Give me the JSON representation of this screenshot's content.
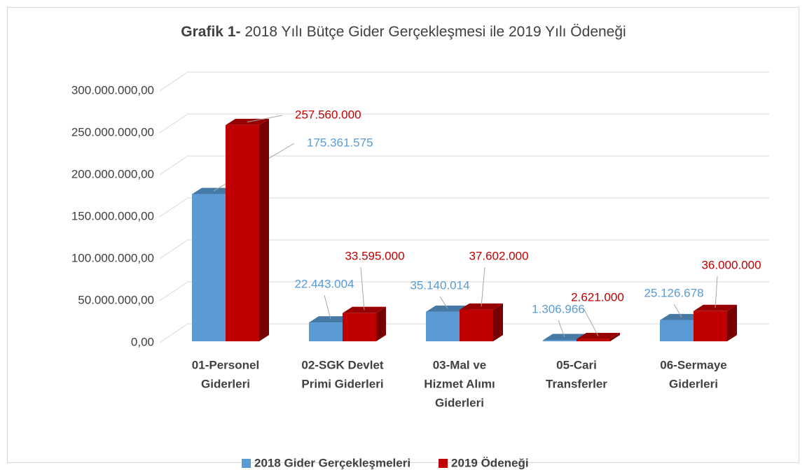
{
  "chart_data": {
    "type": "bar3d",
    "title_bold": "Grafik 1-",
    "title": "2018 Yılı Bütçe Gider Gerçekleşmesi ile 2019 Yılı Ödeneği",
    "categories": [
      [
        "01-Personel",
        "Giderleri"
      ],
      [
        "02-SGK Devlet",
        "Primi Giderleri"
      ],
      [
        "03-Mal ve",
        "Hizmet Alımı",
        "Giderleri"
      ],
      [
        "05-Cari",
        "Transferler"
      ],
      [
        "06-Sermaye",
        "Giderleri"
      ]
    ],
    "series": [
      {
        "name": "2018 Gider Gerçekleşmeleri",
        "color": "#5b9bd5",
        "values": [
          175361575,
          22443004,
          35140014,
          1306966,
          25126678
        ],
        "value_labels": [
          "175.361.575",
          "22.443.004",
          "35.140.014",
          "1.306.966",
          "25.126.678"
        ]
      },
      {
        "name": "2019 Ödeneği",
        "color": "#c00000",
        "values": [
          257560000,
          33595000,
          37602000,
          2621000,
          36000000
        ],
        "value_labels": [
          "257.560.000",
          "33.595.000",
          "37.602.000",
          "2.621.000",
          "36.000.000"
        ]
      }
    ],
    "ylim": [
      0,
      300000000
    ],
    "yticks": [
      {
        "value": 0,
        "label": "0,00"
      },
      {
        "value": 50000000,
        "label": "50.000.000,00"
      },
      {
        "value": 100000000,
        "label": "100.000.000,00"
      },
      {
        "value": 150000000,
        "label": "150.000.000,00"
      },
      {
        "value": 200000000,
        "label": "200.000.000,00"
      },
      {
        "value": 250000000,
        "label": "250.000.000,00"
      },
      {
        "value": 300000000,
        "label": "300.000.000,00"
      }
    ],
    "grid": true,
    "legend": "bottom"
  }
}
